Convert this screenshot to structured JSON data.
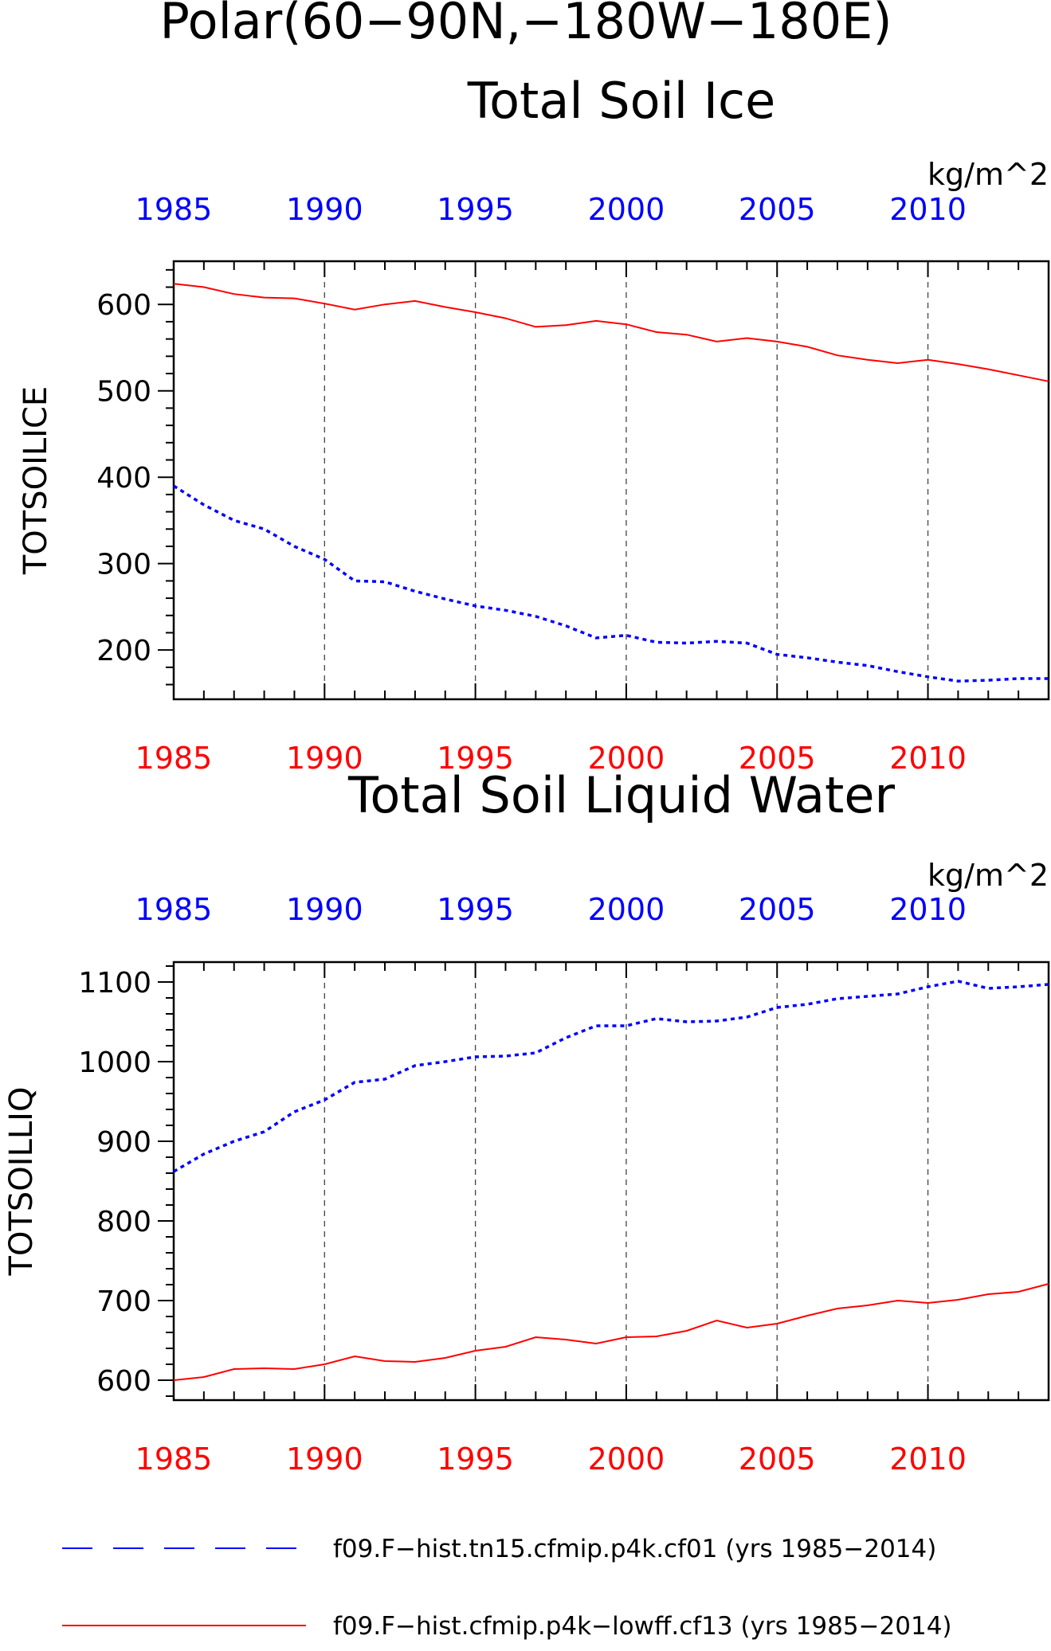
{
  "page": {
    "title": "Polar(60−90N,−180W−180E)"
  },
  "chart_data": [
    {
      "type": "line",
      "title": "Total Soil Ice",
      "units": "kg/m^2",
      "ylabel": "TOTSOILICE",
      "xlim": [
        1985,
        2014
      ],
      "ylim": [
        143,
        650
      ],
      "yticks": [
        200,
        300,
        400,
        500,
        600
      ],
      "xticks": [
        1985,
        1990,
        1995,
        2000,
        2005,
        2010
      ],
      "grid": "vertical dashed at major x ticks",
      "x": [
        1985,
        1986,
        1987,
        1988,
        1989,
        1990,
        1991,
        1992,
        1993,
        1994,
        1995,
        1996,
        1997,
        1998,
        1999,
        2000,
        2001,
        2002,
        2003,
        2004,
        2005,
        2006,
        2007,
        2008,
        2009,
        2010,
        2011,
        2012,
        2013,
        2014
      ],
      "series": [
        {
          "name": "f09.F−hist.tn15.cfmip.p4k.cf01 (yrs 1985−2014)",
          "color": "#0000ff",
          "style": "dashed",
          "axis": "top",
          "values": [
            390,
            368,
            350,
            340,
            320,
            305,
            280,
            279,
            268,
            259,
            251,
            246,
            239,
            228,
            214,
            217,
            209,
            208,
            210,
            208,
            195,
            191,
            186,
            182,
            175,
            169,
            164,
            165,
            167,
            167
          ]
        },
        {
          "name": "f09.F−hist.cfmip.p4k−lowff.cf13 (yrs 1985−2014)",
          "color": "#ff0000",
          "style": "solid",
          "axis": "bottom",
          "values": [
            624,
            620,
            612,
            608,
            607,
            601,
            594,
            600,
            604,
            597,
            591,
            584,
            574,
            576,
            581,
            577,
            568,
            565,
            557,
            561,
            557,
            551,
            541,
            536,
            532,
            536,
            531,
            525,
            518,
            511
          ]
        }
      ]
    },
    {
      "type": "line",
      "title": "Total Soil Liquid Water",
      "units": "kg/m^2",
      "ylabel": "TOTSOILLIQ",
      "xlim": [
        1985,
        2014
      ],
      "ylim": [
        575,
        1125
      ],
      "yticks": [
        600,
        700,
        800,
        900,
        1000,
        1100
      ],
      "xticks": [
        1985,
        1990,
        1995,
        2000,
        2005,
        2010
      ],
      "grid": "vertical dashed at major x ticks",
      "x": [
        1985,
        1986,
        1987,
        1988,
        1989,
        1990,
        1991,
        1992,
        1993,
        1994,
        1995,
        1996,
        1997,
        1998,
        1999,
        2000,
        2001,
        2002,
        2003,
        2004,
        2005,
        2006,
        2007,
        2008,
        2009,
        2010,
        2011,
        2012,
        2013,
        2014
      ],
      "series": [
        {
          "name": "f09.F−hist.tn15.cfmip.p4k.cf01 (yrs 1985−2014)",
          "color": "#0000ff",
          "style": "dashed",
          "axis": "top",
          "values": [
            862,
            884,
            900,
            912,
            937,
            952,
            974,
            978,
            995,
            1000,
            1006,
            1007,
            1011,
            1030,
            1045,
            1045,
            1054,
            1050,
            1051,
            1056,
            1068,
            1072,
            1079,
            1082,
            1085,
            1094,
            1101,
            1092,
            1094,
            1097
          ]
        },
        {
          "name": "f09.F−hist.cfmip.p4k−lowff.cf13 (yrs 1985−2014)",
          "color": "#ff0000",
          "style": "solid",
          "axis": "bottom",
          "values": [
            600,
            604,
            614,
            615,
            614,
            620,
            630,
            624,
            623,
            628,
            637,
            642,
            654,
            651,
            646,
            654,
            655,
            662,
            675,
            666,
            671,
            681,
            690,
            694,
            700,
            697,
            701,
            708,
            711,
            721
          ]
        }
      ]
    }
  ],
  "legend": {
    "placement": "bottom",
    "entries": [
      {
        "label": "f09.F−hist.tn15.cfmip.p4k.cf01 (yrs 1985−2014)",
        "color": "#0000ff",
        "style": "dashed"
      },
      {
        "label": "f09.F−hist.cfmip.p4k−lowff.cf13 (yrs 1985−2014)",
        "color": "#ff0000",
        "style": "solid"
      }
    ]
  }
}
